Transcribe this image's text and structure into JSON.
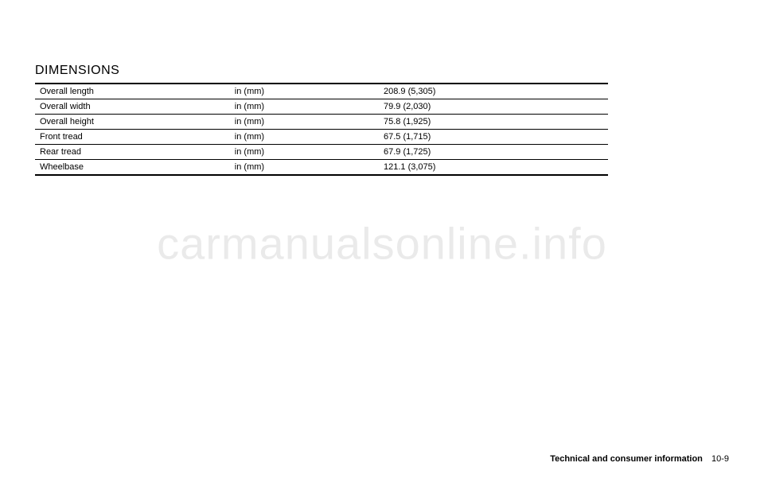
{
  "section_title": "DIMENSIONS",
  "table": {
    "columns": [
      "label",
      "unit",
      "value"
    ],
    "rows": [
      {
        "label": "Overall length",
        "unit": "in (mm)",
        "value": "208.9 (5,305)"
      },
      {
        "label": "Overall width",
        "unit": "in (mm)",
        "value": "79.9 (2,030)"
      },
      {
        "label": "Overall height",
        "unit": "in (mm)",
        "value": "75.8 (1,925)"
      },
      {
        "label": "Front tread",
        "unit": "in (mm)",
        "value": "67.5 (1,715)"
      },
      {
        "label": "Rear tread",
        "unit": "in (mm)",
        "value": "67.9 (1,725)"
      },
      {
        "label": "Wheelbase",
        "unit": "in (mm)",
        "value": "121.1 (3,075)"
      }
    ]
  },
  "footer": {
    "chapter": "Technical and consumer information",
    "page": "10-9"
  },
  "watermark": "carmanualsonline.info"
}
